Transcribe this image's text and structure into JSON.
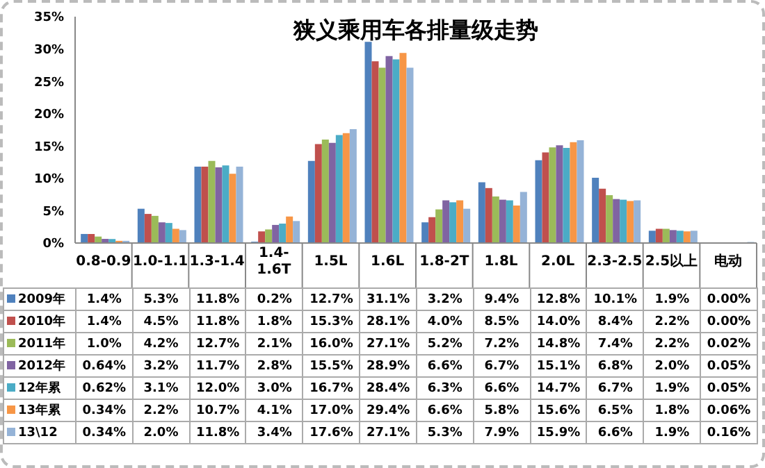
{
  "chart_data": {
    "type": "bar",
    "title": "狭义乘用车各排量级走势",
    "categories": [
      "0.8-0.9",
      "1.0-1.1",
      "1.3-1.4",
      "1.4-1.6T",
      "1.5L",
      "1.6L",
      "1.8-2T",
      "1.8L",
      "2.0L",
      "2.3-2.5",
      "2.5以上",
      "电动"
    ],
    "series": [
      {
        "name": "2009年",
        "color": "#4f81bd",
        "values": [
          1.4,
          5.3,
          11.8,
          0.2,
          12.7,
          31.1,
          3.2,
          9.4,
          12.8,
          10.1,
          1.9,
          0.0
        ],
        "value_labels": [
          "1.4%",
          "5.3%",
          "11.8%",
          "0.2%",
          "12.7%",
          "31.1%",
          "3.2%",
          "9.4%",
          "12.8%",
          "10.1%",
          "1.9%",
          "0.00%"
        ]
      },
      {
        "name": "2010年",
        "color": "#c0504d",
        "values": [
          1.4,
          4.5,
          11.8,
          1.8,
          15.3,
          28.1,
          4.0,
          8.5,
          14.0,
          8.4,
          2.2,
          0.0
        ],
        "value_labels": [
          "1.4%",
          "4.5%",
          "11.8%",
          "1.8%",
          "15.3%",
          "28.1%",
          "4.0%",
          "8.5%",
          "14.0%",
          "8.4%",
          "2.2%",
          "0.00%"
        ]
      },
      {
        "name": "2011年",
        "color": "#9bbb59",
        "values": [
          1.0,
          4.2,
          12.7,
          2.1,
          16.0,
          27.1,
          5.2,
          7.2,
          14.8,
          7.4,
          2.2,
          0.02
        ],
        "value_labels": [
          "1.0%",
          "4.2%",
          "12.7%",
          "2.1%",
          "16.0%",
          "27.1%",
          "5.2%",
          "7.2%",
          "14.8%",
          "7.4%",
          "2.2%",
          "0.02%"
        ]
      },
      {
        "name": "2012年",
        "color": "#8064a2",
        "values": [
          0.64,
          3.2,
          11.7,
          2.8,
          15.5,
          28.9,
          6.6,
          6.7,
          15.1,
          6.8,
          2.0,
          0.05
        ],
        "value_labels": [
          "0.64%",
          "3.2%",
          "11.7%",
          "2.8%",
          "15.5%",
          "28.9%",
          "6.6%",
          "6.7%",
          "15.1%",
          "6.8%",
          "2.0%",
          "0.05%"
        ]
      },
      {
        "name": "12年累",
        "color": "#4bacc6",
        "values": [
          0.62,
          3.1,
          12.0,
          3.0,
          16.7,
          28.4,
          6.3,
          6.6,
          14.7,
          6.7,
          1.9,
          0.05
        ],
        "value_labels": [
          "0.62%",
          "3.1%",
          "12.0%",
          "3.0%",
          "16.7%",
          "28.4%",
          "6.3%",
          "6.6%",
          "14.7%",
          "6.7%",
          "1.9%",
          "0.05%"
        ]
      },
      {
        "name": "13年累",
        "color": "#f79646",
        "values": [
          0.34,
          2.2,
          10.7,
          4.1,
          17.0,
          29.4,
          6.6,
          5.8,
          15.6,
          6.5,
          1.8,
          0.06
        ],
        "value_labels": [
          "0.34%",
          "2.2%",
          "10.7%",
          "4.1%",
          "17.0%",
          "29.4%",
          "6.6%",
          "5.8%",
          "15.6%",
          "6.5%",
          "1.8%",
          "0.06%"
        ]
      },
      {
        "name": "13\\12",
        "color": "#95b3d7",
        "values": [
          0.34,
          2.0,
          11.8,
          3.4,
          17.6,
          27.1,
          5.3,
          7.9,
          15.9,
          6.6,
          1.9,
          0.16
        ],
        "value_labels": [
          "0.34%",
          "2.0%",
          "11.8%",
          "3.4%",
          "17.6%",
          "27.1%",
          "5.3%",
          "7.9%",
          "15.9%",
          "6.6%",
          "1.9%",
          "0.16%"
        ]
      }
    ],
    "ylim": [
      0,
      35
    ],
    "yticks": [
      {
        "value": 0,
        "label": "0%"
      },
      {
        "value": 5,
        "label": "5%"
      },
      {
        "value": 10,
        "label": "10%"
      },
      {
        "value": 15,
        "label": "15%"
      },
      {
        "value": 20,
        "label": "20%"
      },
      {
        "value": 25,
        "label": "25%"
      },
      {
        "value": 30,
        "label": "30%"
      },
      {
        "value": 35,
        "label": "35%"
      }
    ],
    "legend": "bottom left"
  }
}
